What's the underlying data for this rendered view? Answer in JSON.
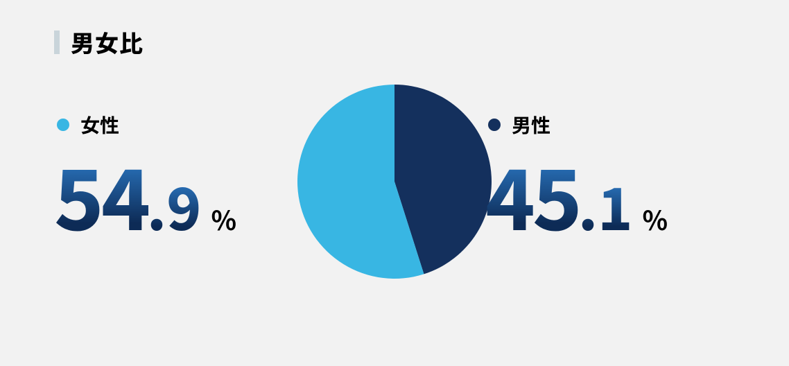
{
  "title": "男女比",
  "background_color": "#f2f2f2",
  "title_bar_color": "#c9d4da",
  "chart": {
    "type": "pie",
    "radius": 140,
    "slices": [
      {
        "label": "男性",
        "value": 45.1,
        "color": "#14305d",
        "start_angle": 0,
        "end_angle": 162.36
      },
      {
        "label": "女性",
        "value": 54.9,
        "color": "#38b6e3",
        "start_angle": 162.36,
        "end_angle": 360
      }
    ]
  },
  "stats": {
    "left": {
      "dot_color": "#38b6e3",
      "label": "女性",
      "int": "54",
      "dec": ".9",
      "unit": "%"
    },
    "right": {
      "dot_color": "#14305d",
      "label": "男性",
      "int": "45",
      "dec": ".1",
      "unit": "%"
    }
  },
  "value_gradient": {
    "top": "#2d7cc9",
    "bottom": "#0d2b56"
  }
}
